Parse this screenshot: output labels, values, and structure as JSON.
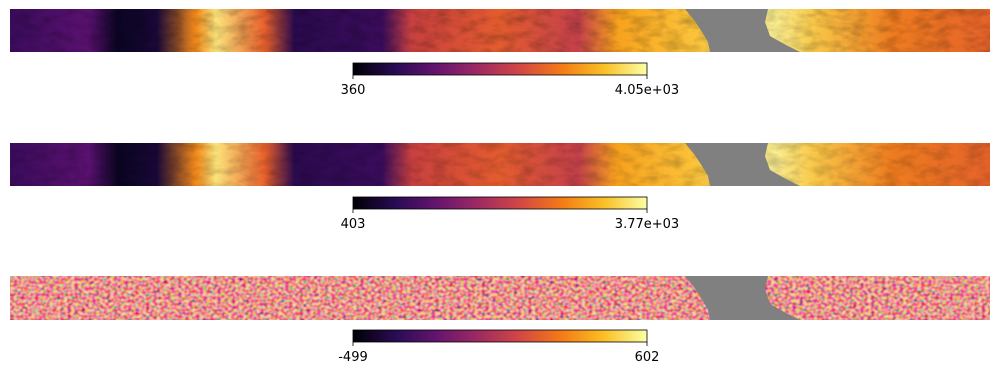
{
  "chart_data": [
    {
      "type": "heatmap",
      "colormap": "inferno",
      "clim": [
        360,
        4050
      ],
      "cticks": [
        360,
        {
          "value": 4050,
          "label": "4.05e+03"
        }
      ]
    },
    {
      "type": "heatmap",
      "colormap": "inferno",
      "clim": [
        403,
        3770
      ],
      "cticks": [
        403,
        {
          "value": 3770,
          "label": "3.77e+03"
        }
      ]
    },
    {
      "type": "heatmap",
      "colormap": "inferno",
      "clim": [
        -499,
        602
      ],
      "cticks": [
        -499,
        602
      ]
    }
  ]
}
